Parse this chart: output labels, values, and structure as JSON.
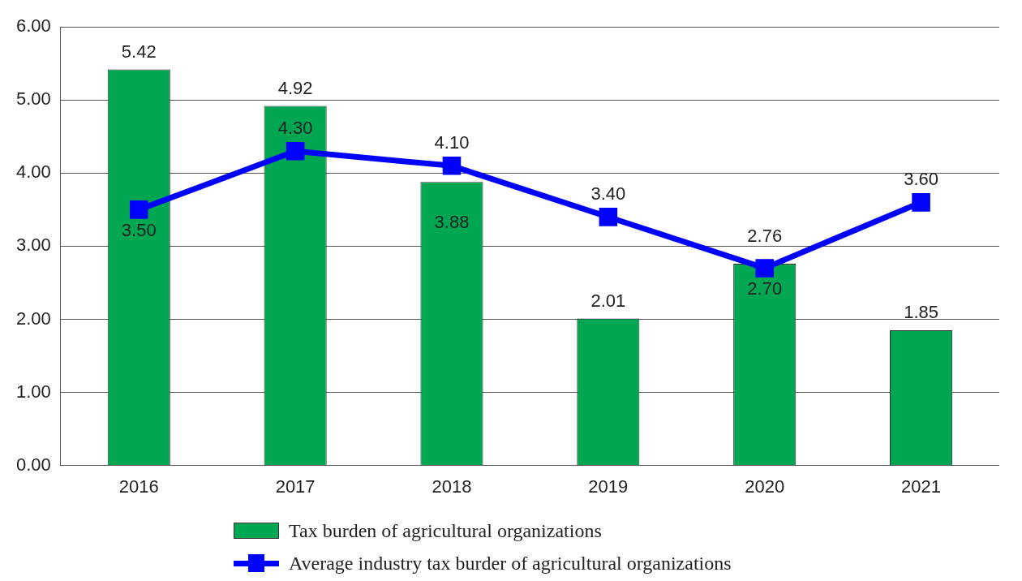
{
  "chart_data": {
    "type": "bar",
    "categories": [
      "2016",
      "2017",
      "2018",
      "2019",
      "2020",
      "2021"
    ],
    "series": [
      {
        "name": "Tax burden of agricultural organizations",
        "color": "#00a651",
        "values": [
          5.42,
          4.92,
          3.88,
          2.01,
          2.76,
          1.85
        ],
        "value_labels": [
          "5.42",
          "4.92",
          "3.88",
          "2.01",
          "2.76",
          "1.85"
        ]
      },
      {
        "name": "Average industry tax burder of agricultural organizations",
        "type": "line",
        "color": "#0000ff",
        "marker": "square",
        "values": [
          3.5,
          4.3,
          4.1,
          3.4,
          2.7,
          3.6
        ],
        "value_labels": [
          "3.50",
          "4.30",
          "4.10",
          "3.40",
          "2.70",
          "3.60"
        ]
      }
    ],
    "ylim": [
      0,
      6
    ],
    "yticks": [
      {
        "value": 0,
        "label": "0.00"
      },
      {
        "value": 1,
        "label": "1.00"
      },
      {
        "value": 2,
        "label": "2.00"
      },
      {
        "value": 3,
        "label": "3.00"
      },
      {
        "value": 4,
        "label": "4.00"
      },
      {
        "value": 5,
        "label": "5.00"
      },
      {
        "value": 6,
        "label": "6.00"
      }
    ],
    "grid": "y",
    "legend": "bottom"
  }
}
